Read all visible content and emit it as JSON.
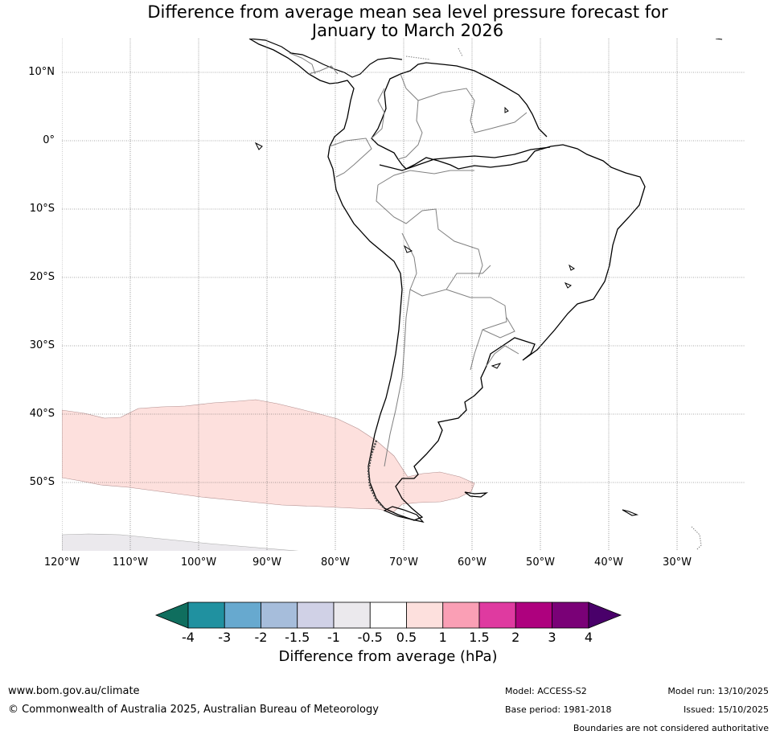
{
  "title": {
    "line1": "Difference from average mean sea level pressure forecast for",
    "line2": "January to March 2026"
  },
  "axes": {
    "lat_labels": [
      "10°N",
      "0°",
      "10°S",
      "20°S",
      "30°S",
      "40°S",
      "50°S"
    ],
    "lon_labels": [
      "120°W",
      "110°W",
      "100°W",
      "90°W",
      "80°W",
      "70°W",
      "60°W",
      "50°W",
      "40°W",
      "30°W"
    ]
  },
  "colorbar": {
    "title": "Difference from average (hPa)",
    "ticks": [
      "-4",
      "-3",
      "-2",
      "-1.5",
      "-1",
      "-0.5",
      "0.5",
      "1",
      "1.5",
      "2",
      "3",
      "4"
    ],
    "colors": {
      "below_min": "#0f6e5e",
      "c1": "#2091a0",
      "c2": "#67a9cf",
      "c3": "#a6bddb",
      "c4": "#d0d1e6",
      "c5": "#ebe9ed",
      "c6": "#ffffff",
      "c7": "#fde0dd",
      "c8": "#fa9fb5",
      "c9": "#df3aa0",
      "c10": "#ae017e",
      "c11": "#7a0177",
      "above_max": "#49006a"
    }
  },
  "map_colors": {
    "positive_anomaly": "#fde0dd",
    "negative_anomaly": "#ebe9ed",
    "coast": "#000000",
    "borders": "#808080",
    "grid": "#555555"
  },
  "footer": {
    "website": "www.bom.gov.au/climate",
    "copyright": "© Commonwealth of Australia 2025, Australian Bureau of Meteorology",
    "model": "Model: ACCESS-S2",
    "base_period": "Base period: 1981-2018",
    "model_run": "Model run: 13/10/2025",
    "issued": "Issued: 15/10/2025",
    "disclaimer": "Boundaries are not considered authoritative"
  }
}
